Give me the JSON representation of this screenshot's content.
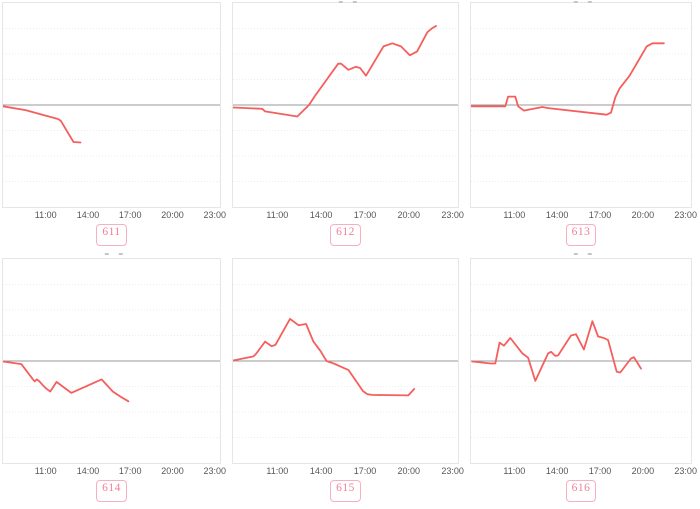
{
  "style": {
    "background_color": "#ffffff",
    "line_color": "#f45f5d",
    "zero_line_color": "#999999",
    "grid_color": "#ececec",
    "border_color": "#e6e6e6",
    "tick_color": "#555555",
    "badge_border_color": "#f7afc2",
    "badge_text_color": "#ee7f9d"
  },
  "axis": {
    "x_ticks": [
      "11:00",
      "14:00",
      "17:00",
      "20:00",
      "23:00"
    ],
    "x_tick_hours": [
      11,
      14,
      17,
      20,
      23
    ],
    "x_range": [
      7.9,
      23.3
    ],
    "y_range": [
      -4,
      4
    ],
    "y_grid_step": 1,
    "grid": "horizontal-dotted",
    "baseline": 0
  },
  "chart_data": [
    {
      "type": "line",
      "badge": "611",
      "title": "",
      "legend": "none",
      "series": [
        {
          "name": "611",
          "points": [
            [
              7.9,
              -0.05
            ],
            [
              9.5,
              -0.2
            ],
            [
              11.8,
              -0.55
            ],
            [
              12.0,
              -0.62
            ],
            [
              12.9,
              -1.45
            ],
            [
              13.4,
              -1.47
            ]
          ]
        }
      ]
    },
    {
      "type": "line",
      "badge": "612",
      "title": "",
      "legend": "none",
      "series": [
        {
          "name": "612",
          "points": [
            [
              7.9,
              -0.1
            ],
            [
              9.9,
              -0.15
            ],
            [
              10.1,
              -0.25
            ],
            [
              12.3,
              -0.45
            ],
            [
              13.1,
              0.0
            ],
            [
              13.5,
              0.35
            ],
            [
              15.1,
              1.62
            ],
            [
              15.3,
              1.62
            ],
            [
              15.8,
              1.38
            ],
            [
              16.3,
              1.5
            ],
            [
              16.6,
              1.45
            ],
            [
              17.0,
              1.15
            ],
            [
              18.2,
              2.3
            ],
            [
              18.8,
              2.42
            ],
            [
              19.4,
              2.3
            ],
            [
              20.0,
              1.95
            ],
            [
              20.5,
              2.1
            ],
            [
              21.2,
              2.85
            ],
            [
              21.5,
              3.0
            ],
            [
              21.8,
              3.1
            ]
          ]
        }
      ]
    },
    {
      "type": "line",
      "badge": "613",
      "title": "",
      "legend": "none",
      "series": [
        {
          "name": "613",
          "points": [
            [
              7.9,
              -0.05
            ],
            [
              10.3,
              -0.05
            ],
            [
              10.5,
              0.33
            ],
            [
              11.0,
              0.33
            ],
            [
              11.2,
              -0.05
            ],
            [
              11.6,
              -0.22
            ],
            [
              12.9,
              -0.08
            ],
            [
              13.3,
              -0.12
            ],
            [
              17.4,
              -0.38
            ],
            [
              17.7,
              -0.3
            ],
            [
              18.0,
              0.3
            ],
            [
              18.3,
              0.65
            ],
            [
              19.0,
              1.15
            ],
            [
              20.2,
              2.3
            ],
            [
              20.6,
              2.42
            ],
            [
              21.4,
              2.42
            ]
          ]
        }
      ]
    },
    {
      "type": "line",
      "badge": "614",
      "title": "",
      "legend": "none",
      "series": [
        {
          "name": "614",
          "points": [
            [
              7.9,
              -0.02
            ],
            [
              9.2,
              -0.12
            ],
            [
              10.0,
              -0.7
            ],
            [
              10.15,
              -0.8
            ],
            [
              10.3,
              -0.72
            ],
            [
              10.45,
              -0.78
            ],
            [
              10.9,
              -1.05
            ],
            [
              11.25,
              -1.2
            ],
            [
              11.7,
              -0.82
            ],
            [
              12.75,
              -1.25
            ],
            [
              14.9,
              -0.72
            ],
            [
              15.7,
              -1.2
            ],
            [
              16.3,
              -1.42
            ],
            [
              16.8,
              -1.58
            ]
          ]
        }
      ]
    },
    {
      "type": "line",
      "badge": "615",
      "title": "",
      "legend": "none",
      "series": [
        {
          "name": "615",
          "points": [
            [
              7.9,
              0.02
            ],
            [
              9.3,
              0.18
            ],
            [
              9.5,
              0.3
            ],
            [
              10.1,
              0.76
            ],
            [
              10.55,
              0.58
            ],
            [
              10.8,
              0.63
            ],
            [
              11.8,
              1.65
            ],
            [
              12.4,
              1.4
            ],
            [
              12.9,
              1.45
            ],
            [
              13.4,
              0.76
            ],
            [
              13.9,
              0.38
            ],
            [
              14.3,
              0.0
            ],
            [
              14.8,
              -0.1
            ],
            [
              15.5,
              -0.28
            ],
            [
              15.8,
              -0.35
            ],
            [
              16.8,
              -1.18
            ],
            [
              17.1,
              -1.3
            ],
            [
              17.4,
              -1.33
            ],
            [
              19.9,
              -1.35
            ],
            [
              20.3,
              -1.1
            ]
          ]
        }
      ]
    },
    {
      "type": "line",
      "badge": "616",
      "title": "",
      "legend": "none",
      "series": [
        {
          "name": "616",
          "points": [
            [
              8.0,
              -0.02
            ],
            [
              9.3,
              -0.1
            ],
            [
              9.6,
              -0.1
            ],
            [
              9.9,
              0.72
            ],
            [
              10.2,
              0.6
            ],
            [
              10.65,
              0.9
            ],
            [
              11.5,
              0.3
            ],
            [
              11.9,
              0.13
            ],
            [
              12.4,
              -0.78
            ],
            [
              13.3,
              0.3
            ],
            [
              13.5,
              0.36
            ],
            [
              13.8,
              0.2
            ],
            [
              14.0,
              0.22
            ],
            [
              14.9,
              1.0
            ],
            [
              15.25,
              1.05
            ],
            [
              15.8,
              0.45
            ],
            [
              16.4,
              1.56
            ],
            [
              16.8,
              0.96
            ],
            [
              17.2,
              0.9
            ],
            [
              17.5,
              0.82
            ],
            [
              18.1,
              -0.42
            ],
            [
              18.35,
              -0.45
            ],
            [
              19.1,
              0.1
            ],
            [
              19.3,
              0.15
            ],
            [
              19.8,
              -0.3
            ]
          ]
        }
      ]
    }
  ]
}
